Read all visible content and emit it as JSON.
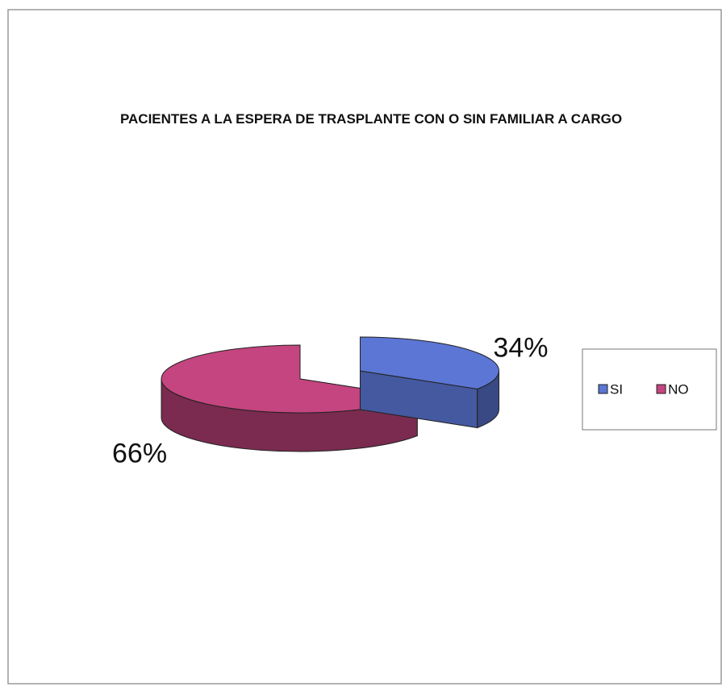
{
  "chart_data": {
    "type": "pie",
    "title": "PACIENTES A LA ESPERA DE TRASPLANTE CON O SIN FAMILIAR A CARGO",
    "categories": [
      "SI",
      "NO"
    ],
    "values": [
      34,
      66
    ],
    "value_labels": [
      "34%",
      "66%"
    ],
    "colors": [
      "#5b76d4",
      "#c4457f"
    ],
    "legend": "right"
  }
}
